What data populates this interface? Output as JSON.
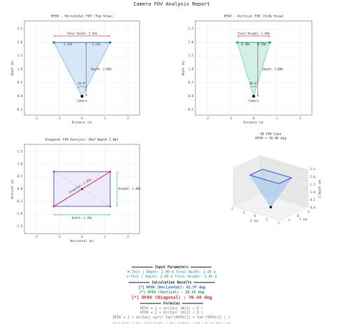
{
  "title": "Camera FOV Analysis Report",
  "chart_data": [
    {
      "type": "fov",
      "title": "HFOV - Horizontal FOV (Top View)",
      "xlabel": "Distance (m)",
      "ylabel": "Depth (m)",
      "xlim": [
        -2.5,
        2.5
      ],
      "xticks": [
        -2,
        -1,
        0,
        1,
        2
      ],
      "ylim": [
        -0.7,
        2.8
      ],
      "yticks": [
        -0.5,
        {
          "value": 0,
          "label": "0.0"
        },
        0.5,
        {
          "value": 1,
          "label": "1.0"
        },
        1.5,
        {
          "value": 2,
          "label": "2.0"
        },
        2.5
      ],
      "grid": true,
      "color": "#1f77b4",
      "fill": "#d6e8f8",
      "span_color": "#d62728",
      "x": [
        0,
        -1.225,
        1.225
      ],
      "values": [
        0,
        2,
        2
      ],
      "annotations": {
        "span": "Total Width: 2.45m",
        "halves": [
          "1.22m",
          "1.22m"
        ],
        "depth": "Depth: 2.00m",
        "angle": "63.0°",
        "camera": "Camera"
      }
    },
    {
      "type": "fov",
      "title": "VFOV - Vertical FOV (Side View)",
      "xlabel": "Distance (m)",
      "ylabel": "Depth (m)",
      "xlim": [
        -2.5,
        2.5
      ],
      "xticks": [
        -2,
        -1,
        0,
        1,
        2
      ],
      "ylim": [
        -0.7,
        2.8
      ],
      "yticks": [
        -0.5,
        {
          "value": 0,
          "label": "0.0"
        },
        0.5,
        {
          "value": 1,
          "label": "1.0"
        },
        1.5,
        {
          "value": 2,
          "label": "2.0"
        },
        2.5
      ],
      "grid": true,
      "color": "#1a9c7a",
      "fill": "#d3f0e4",
      "span_color": "#d62728",
      "x": [
        0,
        -0.7,
        0.7
      ],
      "values": [
        0,
        2,
        2
      ],
      "annotations": {
        "span": "Total Height: 1.40m",
        "halves": [
          "0.70m",
          "0.70m"
        ],
        "depth": "Depth: 2.00m",
        "angle": "38.6°",
        "camera": "Camera"
      }
    },
    {
      "type": "diagonal",
      "title": "Diagonal FOV Analysis (Ref Depth 2.0m)",
      "xlabel": "Horizontal (m)",
      "ylabel": "Vertical (m)",
      "xlim": [
        -2.5,
        2.5
      ],
      "xticks": [
        -2,
        -1,
        0,
        1,
        2
      ],
      "ylim": [
        -1.8,
        1.8
      ],
      "yticks": [
        -1.5,
        {
          "value": -1,
          "label": "-1.0"
        },
        -0.5,
        {
          "value": 0,
          "label": "0.0"
        },
        0.5,
        {
          "value": 1,
          "label": "1.0"
        },
        1.5
      ],
      "grid": true,
      "color": "#6a5acd",
      "fill": "#eeebfc",
      "diag_color": "#d62728",
      "dim_color": "#17a2b8",
      "x": [
        -1.225,
        1.225,
        1.225,
        -1.225
      ],
      "values": [
        -0.7,
        -0.7,
        0.7,
        0.7
      ],
      "center": {
        "x": 0,
        "y": 0
      },
      "annotations": {
        "diagonal": "Diagonal: 2.82m",
        "height": "Height: 1.40m",
        "width": "Width: 2.45m"
      }
    },
    {
      "type": "cone",
      "title": "3D FOV Cone",
      "subtitle": "DFOV = 70.40 deg",
      "xlabel": "X (m)",
      "ylabel": "Y (m)",
      "zlabel": "Z Depth (m)",
      "xlim": [
        -2,
        2
      ],
      "xticks": [
        -2,
        -1,
        0,
        1,
        2
      ],
      "ylim": [
        -1.5,
        1.5
      ],
      "yticks": [
        -1,
        0,
        1
      ],
      "zlim": [
        0,
        2.5
      ],
      "zticks": [
        {
          "value": 0,
          "label": "0.0"
        },
        0.5,
        {
          "value": 1,
          "label": "1.0"
        },
        1.5,
        {
          "value": 2,
          "label": "2.0"
        },
        2.5
      ],
      "color": "#1f3fd6",
      "fill": "#9cc4ee",
      "x": [
        0,
        -1.225,
        1.225,
        1.225,
        -1.225
      ],
      "y": [
        0,
        -0.7,
        -0.7,
        0.7,
        0.7
      ],
      "z": [
        0,
        2,
        2,
        2,
        2
      ]
    }
  ],
  "report": {
    "input_header": "========== Input Parameters ==========",
    "input": [
      "H-Test | Depth: 2.00 m    Total Width: 2.45 m",
      "V-Test | Depth: 2.00 m    Total Height: 1.40 m"
    ],
    "results_header": "========== Calculation Results ==========",
    "results": [
      "[*] HFOV (Horizontal):  62.97 deg",
      "[*] VFOV (Vertical)  :  38.58 deg",
      "[*] DFOV (Diagonal)  :  70.40 deg"
    ],
    "formulas_header": "========== Formulas ==========",
    "formulas": [
      "HFOV = 2 × arctan( (W/2) / D )",
      "VFOV = 2 × arctan( (H/2) / D )",
      "DFOV = 2 × arctan( sqrt( tan²(HFOV/2) + tan²(VFOV/2) ) )"
    ],
    "footer": "Ratio Width: 2.45m | Ratio Height: 1.40m | Diagonal: 2.82m | at ref depth 2.0m"
  }
}
